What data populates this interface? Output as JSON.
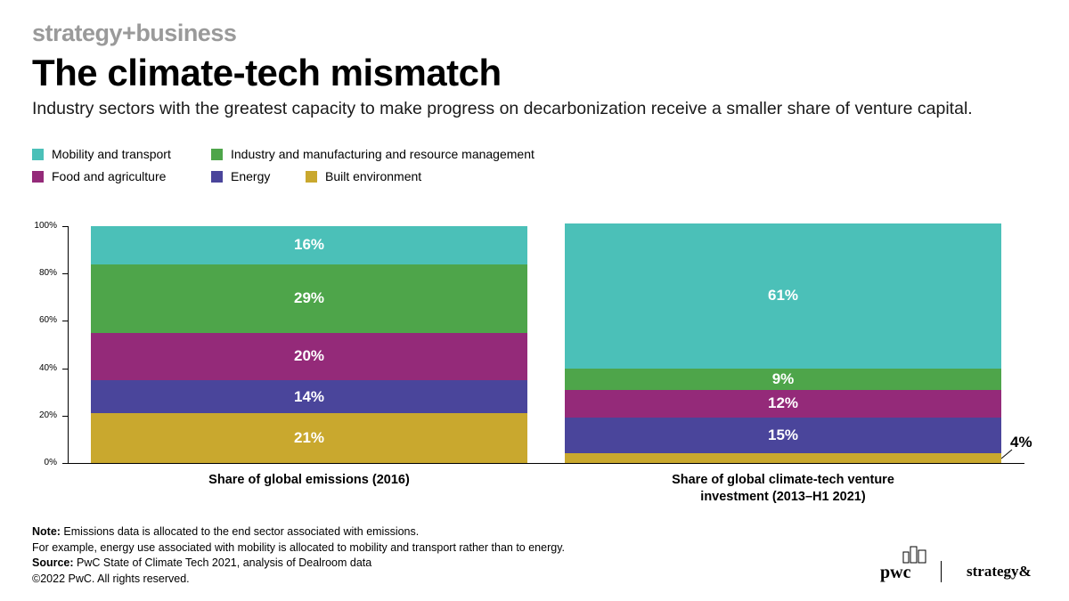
{
  "brand": "strategy+business",
  "title": "The climate-tech mismatch",
  "subtitle": "Industry sectors with the greatest capacity to make progress on decarbonization receive a smaller share of venture capital.",
  "legend": [
    {
      "label": "Mobility and transport",
      "color": "#4bc0b8"
    },
    {
      "label": "Industry and manufacturing and resource management",
      "color": "#4ea54a"
    },
    {
      "label": "Food and agriculture",
      "color": "#942a79"
    },
    {
      "label": "Energy",
      "color": "#4a459b"
    },
    {
      "label": "Built environment",
      "color": "#c9a82e"
    }
  ],
  "chart_data": {
    "type": "bar",
    "stacked": true,
    "categories": [
      "Share of global emissions (2016)",
      "Share of global climate-tech venture investment (2013–H1 2021)"
    ],
    "category_label_lines": [
      [
        "Share of global emissions (2016)"
      ],
      [
        "Share of global climate-tech venture",
        "investment (2013–H1 2021)"
      ]
    ],
    "series": [
      {
        "name": "Built environment",
        "color": "#c9a82e",
        "values": [
          21,
          4
        ],
        "labels": [
          "21%",
          "4%"
        ]
      },
      {
        "name": "Energy",
        "color": "#4a459b",
        "values": [
          14,
          15
        ],
        "labels": [
          "14%",
          "15%"
        ]
      },
      {
        "name": "Food and agriculture",
        "color": "#942a79",
        "values": [
          20,
          12
        ],
        "labels": [
          "20%",
          "12%"
        ]
      },
      {
        "name": "Industry and manufacturing and resource management",
        "color": "#4ea54a",
        "values": [
          29,
          9
        ],
        "labels": [
          "29%",
          "9%"
        ]
      },
      {
        "name": "Mobility and transport",
        "color": "#4bc0b8",
        "values": [
          16,
          61
        ],
        "labels": [
          "16%",
          "61%"
        ]
      }
    ],
    "ylim": [
      0,
      100
    ],
    "yticks": [
      "0%",
      "20%",
      "40%",
      "60%",
      "80%",
      "100%"
    ],
    "grid": false,
    "legend_position": "top-left"
  },
  "notes": [
    {
      "label": "Note:",
      "text": " Emissions data is allocated to the end sector associated with emissions."
    },
    {
      "label": "",
      "text": "For example, energy use associated with mobility is allocated to mobility and transport rather than to energy."
    },
    {
      "label": "Source:",
      "text": " PwC State of Climate Tech 2021, analysis of Dealroom data"
    },
    {
      "label": "",
      "text": "©2022 PwC. All rights reserved."
    }
  ],
  "logos": {
    "pwc": "pwc",
    "strategyand": "strategy&"
  }
}
